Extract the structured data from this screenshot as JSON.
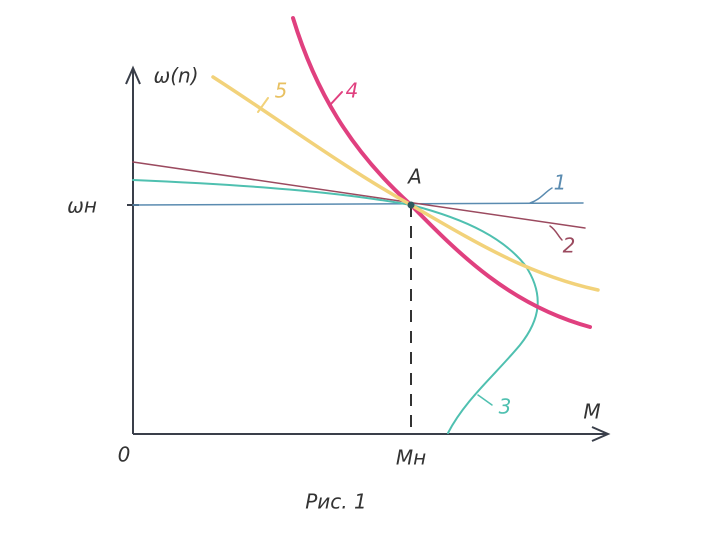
{
  "axes": {
    "y_label": "ω(n)",
    "x_label": "M",
    "origin": "0",
    "y_mark": "ωн",
    "x_mark": "Mн"
  },
  "point": "A",
  "curves": [
    "1",
    "2",
    "3",
    "4",
    "5"
  ],
  "caption": "Рис. 1"
}
